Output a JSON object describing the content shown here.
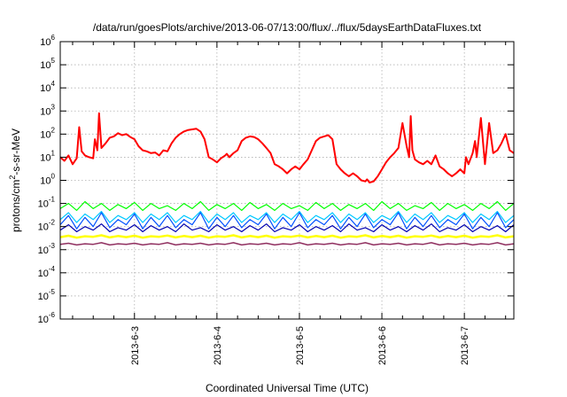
{
  "chart_data": {
    "type": "line",
    "title": "/data/run/goesPlots/archive/2013-06-07/13:00/flux/../flux/5daysEarthDataFluxes.txt",
    "xlabel": "Coordinated Universal Time (UTC)",
    "ylabel_parts": [
      "protons/cm",
      "2",
      "-s-sr-MeV"
    ],
    "y_scale": "log",
    "ylim": [
      1e-06,
      1000000.0
    ],
    "xlim": [
      2.1,
      7.6
    ],
    "x_day_prefix": "2013-6-",
    "y_ticks": [
      {
        "base": "10",
        "exp": "-6",
        "value": 1e-06
      },
      {
        "base": "10",
        "exp": "-5",
        "value": 1e-05
      },
      {
        "base": "10",
        "exp": "-4",
        "value": 0.0001
      },
      {
        "base": "10",
        "exp": "-3",
        "value": 0.001
      },
      {
        "base": "10",
        "exp": "-2",
        "value": 0.01
      },
      {
        "base": "10",
        "exp": "-1",
        "value": 0.1
      },
      {
        "base": "10",
        "exp": "0",
        "value": 1
      },
      {
        "base": "10",
        "exp": "1",
        "value": 10
      },
      {
        "base": "10",
        "exp": "2",
        "value": 100
      },
      {
        "base": "10",
        "exp": "3",
        "value": 1000
      },
      {
        "base": "10",
        "exp": "4",
        "value": 10000
      },
      {
        "base": "10",
        "exp": "5",
        "value": 100000
      },
      {
        "base": "10",
        "exp": "6",
        "value": 1000000
      }
    ],
    "x_ticks": [
      {
        "label": "2013-6-3",
        "value": 3
      },
      {
        "label": "2013-6-4",
        "value": 4
      },
      {
        "label": "2013-6-5",
        "value": 5
      },
      {
        "label": "2013-6-6",
        "value": 6
      },
      {
        "label": "2013-6-7",
        "value": 7
      }
    ],
    "grid": true,
    "series": [
      {
        "color": "#ff0000",
        "width": 2,
        "x": [
          2.1,
          2.15,
          2.2,
          2.25,
          2.3,
          2.33,
          2.36,
          2.4,
          2.45,
          2.5,
          2.52,
          2.55,
          2.57,
          2.6,
          2.65,
          2.7,
          2.75,
          2.8,
          2.85,
          2.9,
          2.95,
          3.0,
          3.05,
          3.1,
          3.15,
          3.2,
          3.25,
          3.3,
          3.35,
          3.4,
          3.45,
          3.5,
          3.55,
          3.6,
          3.65,
          3.7,
          3.75,
          3.8,
          3.85,
          3.9,
          3.95,
          4.0,
          4.05,
          4.1,
          4.12,
          4.15,
          4.2,
          4.25,
          4.3,
          4.35,
          4.4,
          4.45,
          4.5,
          4.55,
          4.6,
          4.65,
          4.7,
          4.75,
          4.8,
          4.85,
          4.9,
          4.95,
          5.0,
          5.05,
          5.1,
          5.15,
          5.2,
          5.25,
          5.3,
          5.35,
          5.4,
          5.45,
          5.5,
          5.55,
          5.6,
          5.65,
          5.7,
          5.75,
          5.8,
          5.82,
          5.85,
          5.9,
          5.95,
          6.0,
          6.05,
          6.1,
          6.15,
          6.2,
          6.25,
          6.3,
          6.33,
          6.35,
          6.37,
          6.4,
          6.45,
          6.5,
          6.55,
          6.6,
          6.65,
          6.7,
          6.75,
          6.8,
          6.85,
          6.9,
          6.95,
          7.0,
          7.02,
          7.05,
          7.1,
          7.13,
          7.15,
          7.2,
          7.25,
          7.3,
          7.35,
          7.4,
          7.45,
          7.5,
          7.55,
          7.6
        ],
        "y": [
          10,
          7,
          12,
          5,
          9,
          200,
          18,
          12,
          10,
          9,
          60,
          20,
          800,
          25,
          40,
          70,
          80,
          110,
          90,
          100,
          75,
          60,
          30,
          20,
          18,
          15,
          16,
          12,
          20,
          18,
          40,
          70,
          100,
          130,
          150,
          160,
          170,
          130,
          60,
          10,
          8,
          6,
          9,
          12,
          14,
          10,
          15,
          20,
          50,
          70,
          80,
          75,
          60,
          40,
          25,
          15,
          5,
          4,
          3,
          2,
          3,
          4,
          3,
          5,
          8,
          20,
          50,
          70,
          80,
          90,
          60,
          5,
          3,
          2,
          1.5,
          2,
          1.5,
          1,
          0.9,
          1.1,
          0.8,
          0.9,
          1.5,
          3,
          6,
          10,
          15,
          25,
          300,
          30,
          10,
          600,
          20,
          8,
          6,
          5,
          7,
          5,
          12,
          4,
          3,
          2,
          1.5,
          2,
          3,
          2,
          10,
          5,
          15,
          50,
          10,
          500,
          5,
          300,
          15,
          20,
          40,
          100,
          20,
          15
        ]
      },
      {
        "color": "#00ff00",
        "x": [
          2.1,
          2.2,
          2.3,
          2.4,
          2.5,
          2.6,
          2.7,
          2.8,
          2.9,
          3.0,
          3.1,
          3.2,
          3.3,
          3.4,
          3.5,
          3.6,
          3.7,
          3.8,
          3.9,
          4.0,
          4.1,
          4.2,
          4.3,
          4.4,
          4.5,
          4.6,
          4.7,
          4.8,
          4.9,
          5.0,
          5.1,
          5.2,
          5.3,
          5.4,
          5.5,
          5.6,
          5.7,
          5.8,
          5.9,
          6.0,
          6.1,
          6.2,
          6.3,
          6.4,
          6.5,
          6.6,
          6.7,
          6.8,
          6.9,
          7.0,
          7.1,
          7.2,
          7.3,
          7.4,
          7.5,
          7.6
        ],
        "y": [
          0.06,
          0.1,
          0.05,
          0.12,
          0.06,
          0.1,
          0.05,
          0.09,
          0.06,
          0.11,
          0.05,
          0.1,
          0.06,
          0.08,
          0.05,
          0.1,
          0.06,
          0.12,
          0.05,
          0.09,
          0.06,
          0.1,
          0.05,
          0.11,
          0.06,
          0.09,
          0.05,
          0.1,
          0.06,
          0.08,
          0.05,
          0.11,
          0.06,
          0.1,
          0.05,
          0.09,
          0.06,
          0.1,
          0.05,
          0.12,
          0.06,
          0.1,
          0.05,
          0.08,
          0.06,
          0.11,
          0.05,
          0.1,
          0.06,
          0.09,
          0.05,
          0.1,
          0.06,
          0.12,
          0.05,
          0.1
        ]
      },
      {
        "color": "#00c8ff",
        "x": [
          2.1,
          2.2,
          2.3,
          2.4,
          2.5,
          2.6,
          2.7,
          2.8,
          2.9,
          3.0,
          3.1,
          3.2,
          3.3,
          3.4,
          3.5,
          3.6,
          3.7,
          3.8,
          3.9,
          4.0,
          4.1,
          4.2,
          4.3,
          4.4,
          4.5,
          4.6,
          4.7,
          4.8,
          4.9,
          5.0,
          5.1,
          5.2,
          5.3,
          5.4,
          5.5,
          5.6,
          5.7,
          5.8,
          5.9,
          6.0,
          6.1,
          6.2,
          6.3,
          6.4,
          6.5,
          6.6,
          6.7,
          6.8,
          6.9,
          7.0,
          7.1,
          7.2,
          7.3,
          7.4,
          7.5,
          7.6
        ],
        "y": [
          0.02,
          0.04,
          0.015,
          0.035,
          0.02,
          0.045,
          0.015,
          0.03,
          0.02,
          0.04,
          0.015,
          0.035,
          0.02,
          0.04,
          0.015,
          0.03,
          0.02,
          0.045,
          0.015,
          0.035,
          0.02,
          0.04,
          0.015,
          0.03,
          0.02,
          0.04,
          0.015,
          0.035,
          0.02,
          0.045,
          0.015,
          0.03,
          0.02,
          0.04,
          0.015,
          0.035,
          0.02,
          0.04,
          0.015,
          0.03,
          0.02,
          0.045,
          0.015,
          0.035,
          0.02,
          0.04,
          0.015,
          0.03,
          0.02,
          0.04,
          0.015,
          0.035,
          0.02,
          0.045,
          0.015,
          0.03
        ]
      },
      {
        "color": "#0050ff",
        "x": [
          2.1,
          2.2,
          2.3,
          2.4,
          2.5,
          2.6,
          2.7,
          2.8,
          2.9,
          3.0,
          3.1,
          3.2,
          3.3,
          3.4,
          3.5,
          3.6,
          3.7,
          3.8,
          3.9,
          4.0,
          4.1,
          4.2,
          4.3,
          4.4,
          4.5,
          4.6,
          4.7,
          4.8,
          4.9,
          5.0,
          5.1,
          5.2,
          5.3,
          5.4,
          5.5,
          5.6,
          5.7,
          5.8,
          5.9,
          6.0,
          6.1,
          6.2,
          6.3,
          6.4,
          6.5,
          6.6,
          6.7,
          6.8,
          6.9,
          7.0,
          7.1,
          7.2,
          7.3,
          7.4,
          7.5,
          7.6
        ],
        "y": [
          0.012,
          0.03,
          0.008,
          0.025,
          0.01,
          0.04,
          0.009,
          0.02,
          0.012,
          0.035,
          0.008,
          0.025,
          0.01,
          0.03,
          0.009,
          0.02,
          0.012,
          0.04,
          0.008,
          0.025,
          0.01,
          0.03,
          0.009,
          0.02,
          0.012,
          0.035,
          0.008,
          0.025,
          0.01,
          0.04,
          0.009,
          0.02,
          0.012,
          0.03,
          0.008,
          0.025,
          0.01,
          0.035,
          0.009,
          0.02,
          0.012,
          0.04,
          0.008,
          0.025,
          0.01,
          0.03,
          0.009,
          0.02,
          0.012,
          0.035,
          0.008,
          0.025,
          0.01,
          0.04,
          0.009,
          0.02
        ]
      },
      {
        "color": "#0000b0",
        "x": [
          2.1,
          2.2,
          2.3,
          2.4,
          2.5,
          2.6,
          2.7,
          2.8,
          2.9,
          3.0,
          3.1,
          3.2,
          3.3,
          3.4,
          3.5,
          3.6,
          3.7,
          3.8,
          3.9,
          4.0,
          4.1,
          4.2,
          4.3,
          4.4,
          4.5,
          4.6,
          4.7,
          4.8,
          4.9,
          5.0,
          5.1,
          5.2,
          5.3,
          5.4,
          5.5,
          5.6,
          5.7,
          5.8,
          5.9,
          6.0,
          6.1,
          6.2,
          6.3,
          6.4,
          6.5,
          6.6,
          6.7,
          6.8,
          6.9,
          7.0,
          7.1,
          7.2,
          7.3,
          7.4,
          7.5,
          7.6
        ],
        "y": [
          0.007,
          0.012,
          0.006,
          0.01,
          0.007,
          0.013,
          0.006,
          0.009,
          0.007,
          0.012,
          0.006,
          0.011,
          0.007,
          0.01,
          0.006,
          0.013,
          0.007,
          0.009,
          0.006,
          0.012,
          0.007,
          0.01,
          0.006,
          0.011,
          0.007,
          0.013,
          0.006,
          0.009,
          0.007,
          0.012,
          0.006,
          0.01,
          0.007,
          0.011,
          0.006,
          0.013,
          0.007,
          0.009,
          0.006,
          0.012,
          0.007,
          0.01,
          0.006,
          0.011,
          0.007,
          0.013,
          0.006,
          0.009,
          0.007,
          0.012,
          0.006,
          0.01,
          0.007,
          0.011,
          0.006,
          0.012
        ]
      },
      {
        "color": "#ffff00",
        "width": 2.5,
        "x": [
          2.1,
          2.2,
          2.3,
          2.4,
          2.5,
          2.6,
          2.7,
          2.8,
          2.9,
          3.0,
          3.1,
          3.2,
          3.3,
          3.4,
          3.5,
          3.6,
          3.7,
          3.8,
          3.9,
          4.0,
          4.1,
          4.2,
          4.3,
          4.4,
          4.5,
          4.6,
          4.7,
          4.8,
          4.9,
          5.0,
          5.1,
          5.2,
          5.3,
          5.4,
          5.5,
          5.6,
          5.7,
          5.8,
          5.9,
          6.0,
          6.1,
          6.2,
          6.3,
          6.4,
          6.5,
          6.6,
          6.7,
          6.8,
          6.9,
          7.0,
          7.1,
          7.2,
          7.3,
          7.4,
          7.5,
          7.6
        ],
        "y": [
          0.0035,
          0.004,
          0.0033,
          0.0038,
          0.0036,
          0.0042,
          0.0034,
          0.0039,
          0.0035,
          0.004,
          0.0033,
          0.0038,
          0.0036,
          0.0041,
          0.0034,
          0.0039,
          0.0035,
          0.004,
          0.0033,
          0.0038,
          0.0036,
          0.0042,
          0.0034,
          0.0039,
          0.0035,
          0.004,
          0.0033,
          0.0038,
          0.0036,
          0.0041,
          0.0034,
          0.0039,
          0.0035,
          0.004,
          0.0033,
          0.0038,
          0.0036,
          0.0042,
          0.0034,
          0.0039,
          0.0035,
          0.004,
          0.0033,
          0.0038,
          0.0036,
          0.0041,
          0.0034,
          0.0039,
          0.0035,
          0.004,
          0.0033,
          0.0038,
          0.0036,
          0.0042,
          0.0034,
          0.0038
        ]
      },
      {
        "color": "#903060",
        "width": 1.5,
        "x": [
          2.1,
          2.2,
          2.3,
          2.4,
          2.5,
          2.6,
          2.7,
          2.8,
          2.9,
          3.0,
          3.1,
          3.2,
          3.3,
          3.4,
          3.5,
          3.6,
          3.7,
          3.8,
          3.9,
          4.0,
          4.1,
          4.2,
          4.3,
          4.4,
          4.5,
          4.6,
          4.7,
          4.8,
          4.9,
          5.0,
          5.1,
          5.2,
          5.3,
          5.4,
          5.5,
          5.6,
          5.7,
          5.8,
          5.9,
          6.0,
          6.1,
          6.2,
          6.3,
          6.4,
          6.5,
          6.6,
          6.7,
          6.8,
          6.9,
          7.0,
          7.1,
          7.2,
          7.3,
          7.4,
          7.5,
          7.6
        ],
        "y": [
          0.0017,
          0.0019,
          0.0016,
          0.0018,
          0.0017,
          0.002,
          0.0016,
          0.0018,
          0.0017,
          0.0019,
          0.0016,
          0.0018,
          0.0017,
          0.002,
          0.0016,
          0.0018,
          0.0017,
          0.0019,
          0.0016,
          0.0018,
          0.0017,
          0.002,
          0.0016,
          0.0018,
          0.0017,
          0.0019,
          0.0016,
          0.0018,
          0.0017,
          0.002,
          0.0016,
          0.0018,
          0.0017,
          0.0019,
          0.0016,
          0.0018,
          0.0017,
          0.002,
          0.0016,
          0.0018,
          0.0017,
          0.0019,
          0.0016,
          0.0018,
          0.0017,
          0.002,
          0.0016,
          0.0018,
          0.0017,
          0.0019,
          0.0016,
          0.0018,
          0.0017,
          0.002,
          0.0016,
          0.0018
        ]
      }
    ]
  }
}
